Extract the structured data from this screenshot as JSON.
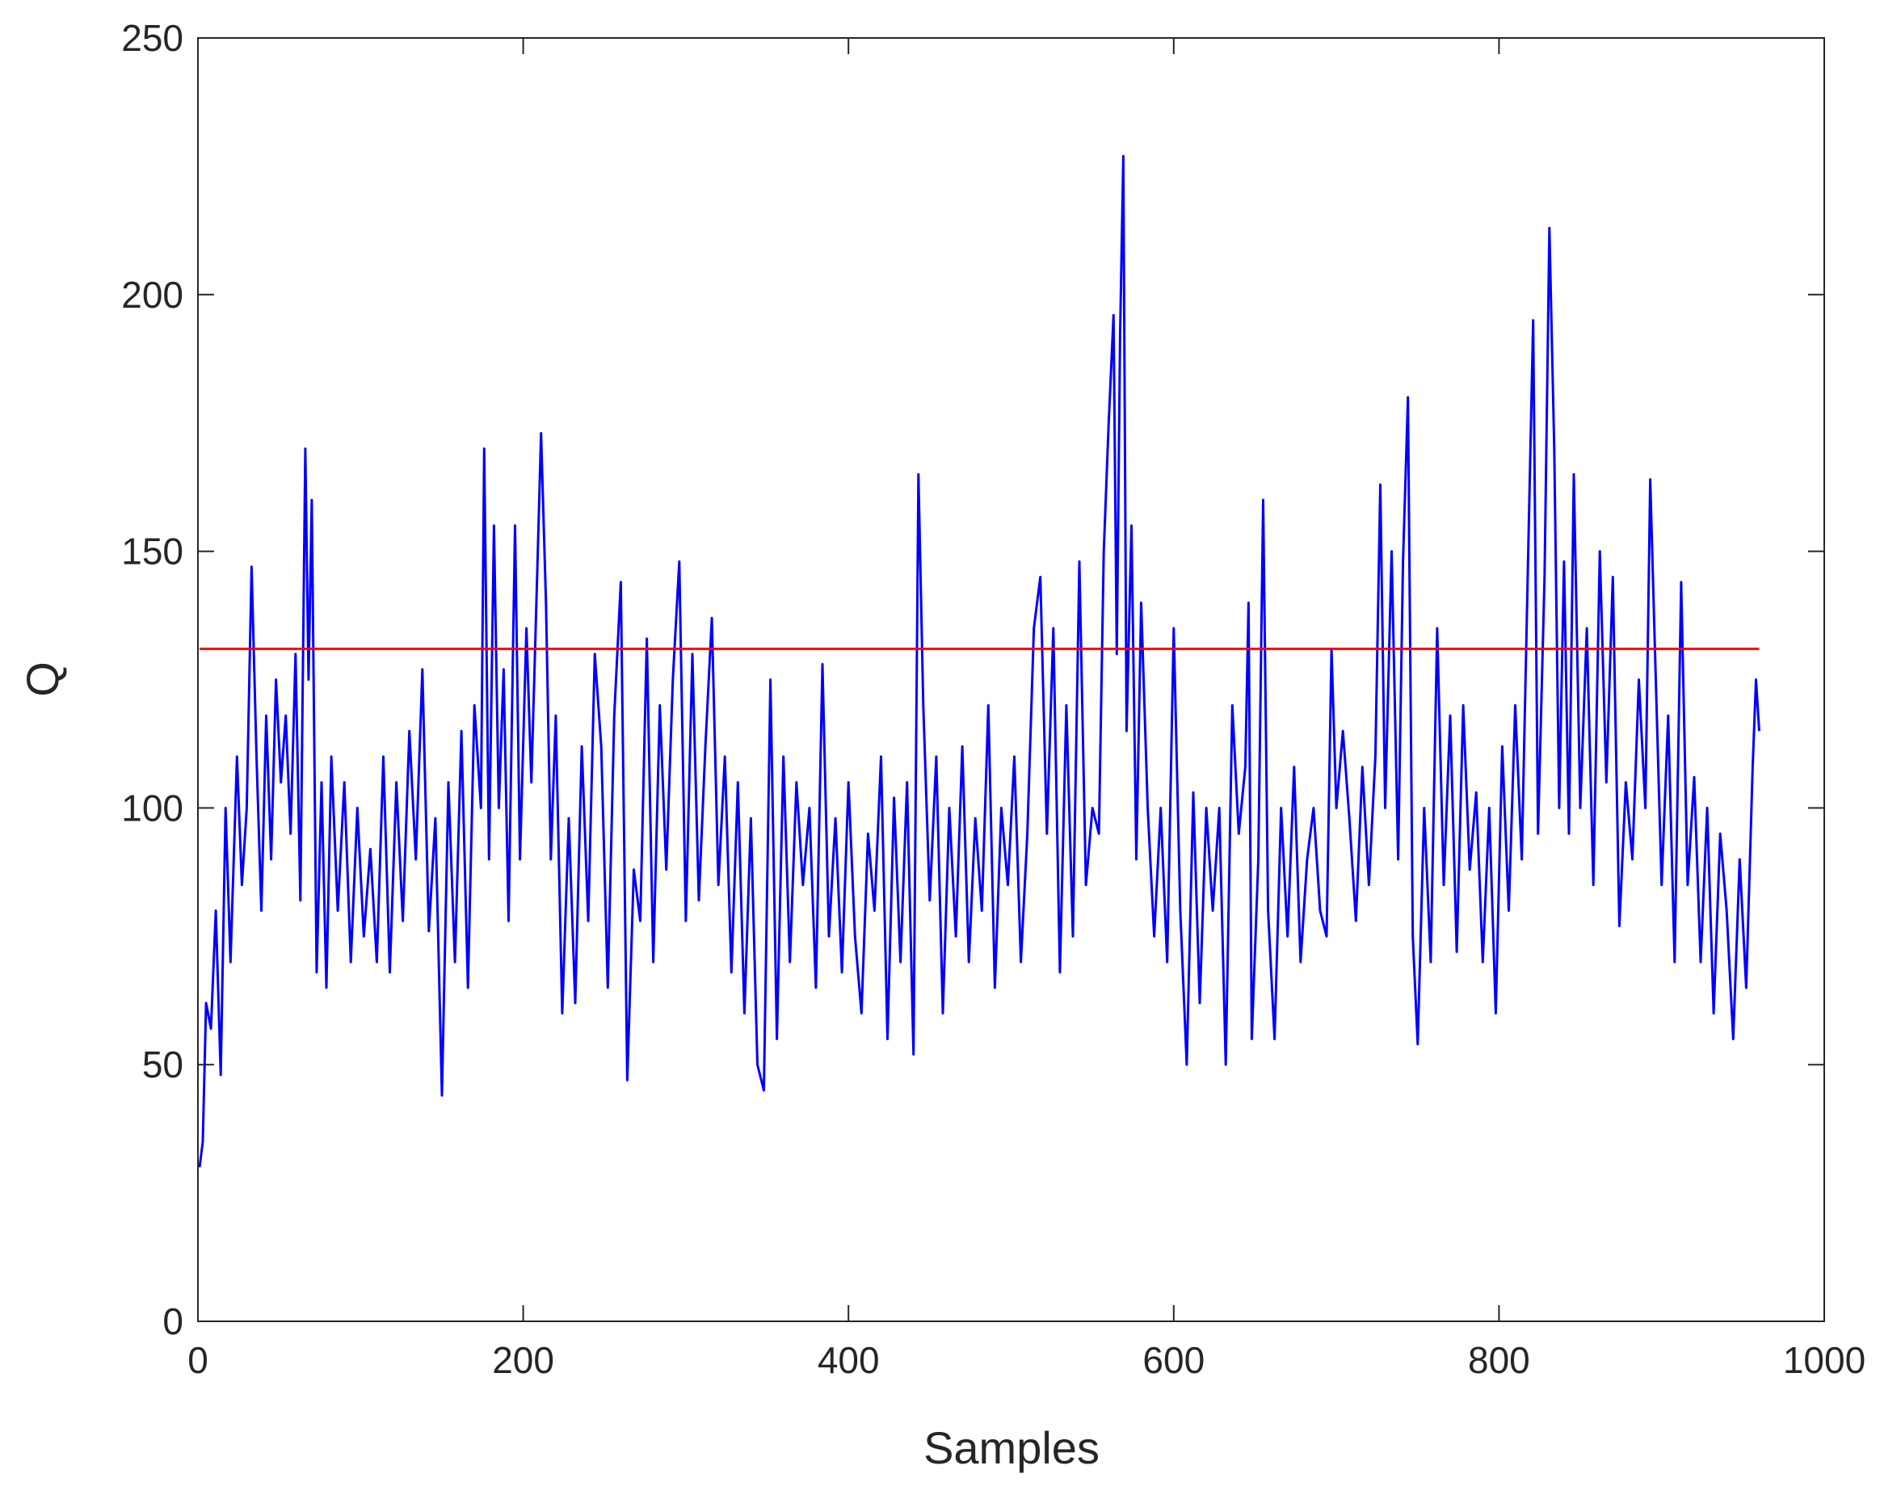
{
  "chart_data": {
    "type": "line",
    "xlabel": "Samples",
    "ylabel": "Q",
    "xlim": [
      0,
      1000
    ],
    "xticks": [
      0,
      200,
      400,
      600,
      800,
      1000
    ],
    "ylim": [
      0,
      250
    ],
    "yticks": [
      0,
      50,
      100,
      150,
      200,
      250
    ],
    "x": [
      1,
      3,
      5,
      8,
      11,
      14,
      17,
      20,
      24,
      27,
      30,
      33,
      36,
      39,
      42,
      45,
      48,
      51,
      54,
      57,
      60,
      63,
      66,
      68,
      70,
      73,
      76,
      79,
      82,
      86,
      90,
      94,
      98,
      102,
      106,
      110,
      114,
      118,
      122,
      126,
      130,
      134,
      138,
      142,
      146,
      150,
      154,
      158,
      162,
      166,
      170,
      174,
      176,
      179,
      182,
      185,
      188,
      191,
      195,
      198,
      202,
      205,
      209,
      211,
      214,
      217,
      220,
      224,
      228,
      232,
      236,
      240,
      244,
      248,
      252,
      256,
      260,
      264,
      268,
      272,
      276,
      280,
      284,
      288,
      292,
      296,
      300,
      304,
      308,
      312,
      316,
      320,
      324,
      328,
      332,
      336,
      340,
      344,
      348,
      352,
      356,
      360,
      364,
      368,
      372,
      376,
      380,
      384,
      388,
      392,
      396,
      400,
      404,
      408,
      412,
      416,
      420,
      424,
      428,
      432,
      436,
      440,
      443,
      446,
      450,
      454,
      458,
      462,
      466,
      470,
      474,
      478,
      482,
      486,
      490,
      494,
      498,
      502,
      506,
      510,
      514,
      518,
      522,
      526,
      530,
      534,
      538,
      542,
      546,
      550,
      554,
      557,
      560,
      563,
      565,
      567,
      569,
      571,
      574,
      577,
      580,
      584,
      588,
      592,
      596,
      600,
      604,
      608,
      612,
      616,
      620,
      624,
      628,
      632,
      636,
      640,
      644,
      646,
      648,
      652,
      655,
      658,
      662,
      666,
      670,
      674,
      678,
      682,
      686,
      690,
      694,
      697,
      700,
      704,
      708,
      712,
      716,
      720,
      724,
      727,
      730,
      734,
      738,
      741,
      744,
      747,
      750,
      754,
      758,
      762,
      766,
      770,
      774,
      778,
      782,
      786,
      790,
      794,
      798,
      802,
      806,
      810,
      814,
      818,
      821,
      824,
      828,
      831,
      834,
      837,
      840,
      843,
      846,
      850,
      854,
      858,
      862,
      866,
      870,
      874,
      878,
      882,
      886,
      890,
      893,
      896,
      900,
      904,
      908,
      912,
      916,
      920,
      924,
      928,
      932,
      936,
      940,
      944,
      948,
      952,
      956,
      958,
      960
    ],
    "series": [
      {
        "color": "#0000ff",
        "values": [
          30,
          35,
          62,
          57,
          80,
          48,
          100,
          70,
          110,
          85,
          100,
          147,
          110,
          80,
          118,
          90,
          125,
          105,
          118,
          95,
          130,
          82,
          170,
          125,
          160,
          68,
          105,
          65,
          110,
          80,
          105,
          70,
          100,
          75,
          92,
          70,
          110,
          68,
          105,
          78,
          115,
          90,
          127,
          76,
          98,
          44,
          105,
          70,
          115,
          65,
          120,
          100,
          170,
          90,
          155,
          100,
          127,
          78,
          155,
          90,
          135,
          105,
          150,
          173,
          140,
          90,
          118,
          60,
          98,
          62,
          112,
          78,
          130,
          112,
          65,
          118,
          144,
          47,
          88,
          78,
          133,
          70,
          120,
          88,
          125,
          148,
          78,
          130,
          82,
          112,
          137,
          85,
          110,
          68,
          105,
          60,
          98,
          50,
          45,
          125,
          55,
          110,
          70,
          105,
          85,
          100,
          65,
          128,
          75,
          98,
          68,
          105,
          75,
          60,
          95,
          80,
          110,
          55,
          102,
          70,
          105,
          52,
          165,
          120,
          82,
          110,
          60,
          100,
          75,
          112,
          70,
          98,
          80,
          120,
          65,
          100,
          85,
          110,
          70,
          95,
          135,
          145,
          95,
          135,
          68,
          120,
          75,
          148,
          85,
          100,
          95,
          150,
          175,
          196,
          130,
          192,
          227,
          115,
          155,
          90,
          140,
          100,
          75,
          100,
          70,
          135,
          80,
          50,
          103,
          62,
          100,
          80,
          100,
          50,
          120,
          95,
          108,
          140,
          55,
          90,
          160,
          80,
          55,
          100,
          75,
          108,
          70,
          90,
          100,
          80,
          75,
          131,
          100,
          115,
          98,
          78,
          108,
          85,
          110,
          163,
          100,
          150,
          90,
          148,
          180,
          75,
          54,
          100,
          70,
          135,
          85,
          118,
          72,
          120,
          88,
          103,
          70,
          100,
          60,
          112,
          80,
          120,
          90,
          150,
          195,
          95,
          145,
          213,
          170,
          100,
          148,
          95,
          165,
          100,
          135,
          85,
          150,
          105,
          145,
          77,
          105,
          90,
          125,
          100,
          164,
          130,
          85,
          118,
          70,
          144,
          85,
          106,
          70,
          100,
          60,
          95,
          80,
          55,
          90,
          65,
          108,
          125,
          115
        ]
      }
    ],
    "reference_line": {
      "value": 131,
      "color": "#ff0000",
      "xrange": [
        1,
        960
      ]
    }
  }
}
